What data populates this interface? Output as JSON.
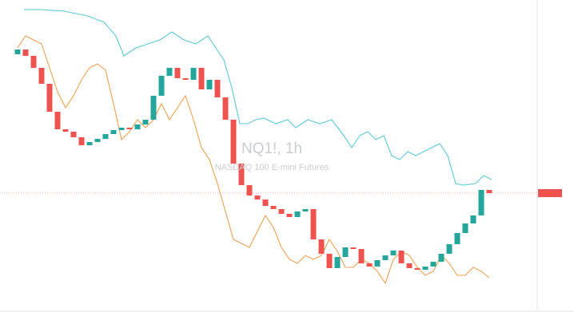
{
  "chart_data": {
    "type": "candlestick",
    "title": "NQ1!, 1h",
    "subtitle": "NASDAQ 100 E-mini Futures",
    "xlim": [
      -2,
      65
    ],
    "ylim": [
      10,
      400
    ],
    "up_color": "#26a69a",
    "down_color": "#ef5350",
    "open": [
      332,
      338,
      330,
      315,
      295,
      260,
      238,
      235,
      228,
      218,
      222,
      226,
      232,
      237,
      240,
      238,
      244,
      250,
      280,
      305,
      315,
      302,
      300,
      315,
      288,
      300,
      278,
      250,
      195,
      168,
      155,
      150,
      142,
      138,
      132,
      128,
      135,
      138,
      100,
      82,
      64,
      78,
      90,
      88,
      70,
      66,
      74,
      80,
      86,
      70,
      64,
      62,
      66,
      72,
      82,
      94,
      108,
      120,
      130,
      162
    ],
    "close": [
      338,
      330,
      315,
      295,
      260,
      238,
      235,
      228,
      218,
      222,
      226,
      232,
      237,
      240,
      238,
      244,
      250,
      280,
      305,
      315,
      302,
      300,
      315,
      288,
      300,
      278,
      250,
      195,
      168,
      155,
      150,
      142,
      138,
      132,
      128,
      135,
      138,
      100,
      82,
      64,
      78,
      90,
      88,
      70,
      66,
      74,
      80,
      86,
      70,
      64,
      62,
      66,
      72,
      82,
      94,
      108,
      120,
      130,
      162,
      158
    ],
    "series": [
      {
        "type": "line",
        "color": "#5bc8d8",
        "x": [
          0.8,
          2.8,
          5.8,
          8.8,
          10.8,
          12.3,
          13.3,
          14.8,
          16.3,
          17.8,
          19.3,
          20.8,
          22.3,
          23.8,
          24.8,
          25.8,
          26.8,
          27.8,
          28.8,
          29.8,
          30.8,
          32.3,
          33.8,
          34.8,
          36.3,
          37.8,
          39.3,
          40.8,
          41.8,
          42.8,
          43.8,
          44.8,
          45.8,
          46.8,
          47.8,
          48.8,
          49.8,
          50.8,
          51.8,
          52.8,
          53.8,
          54.8,
          55.8,
          57.3,
          58.3,
          59.3
        ],
        "values": [
          388,
          388,
          386,
          380,
          372,
          355,
          330,
          340,
          345,
          350,
          360,
          350,
          345,
          355,
          340,
          325,
          290,
          245,
          245,
          250,
          252,
          245,
          250,
          240,
          250,
          245,
          250,
          230,
          215,
          230,
          235,
          225,
          230,
          205,
          200,
          210,
          205,
          210,
          215,
          220,
          205,
          170,
          168,
          170,
          180,
          175
        ]
      },
      {
        "type": "line",
        "color": "#f0a050",
        "values": [
          340,
          355,
          350,
          345,
          315,
          285,
          265,
          280,
          300,
          315,
          320,
          312,
          270,
          225,
          235,
          250,
          240,
          250,
          270,
          250,
          265,
          280,
          250,
          215,
          200,
          170,
          135,
          100,
          95,
          90,
          110,
          130,
          115,
          90,
          75,
          70,
          80,
          75,
          80,
          100,
          85,
          65,
          65,
          75,
          70,
          60,
          45,
          75,
          85,
          80,
          65,
          55,
          60,
          80,
          70,
          55,
          55,
          65,
          60,
          52
        ]
      }
    ]
  }
}
